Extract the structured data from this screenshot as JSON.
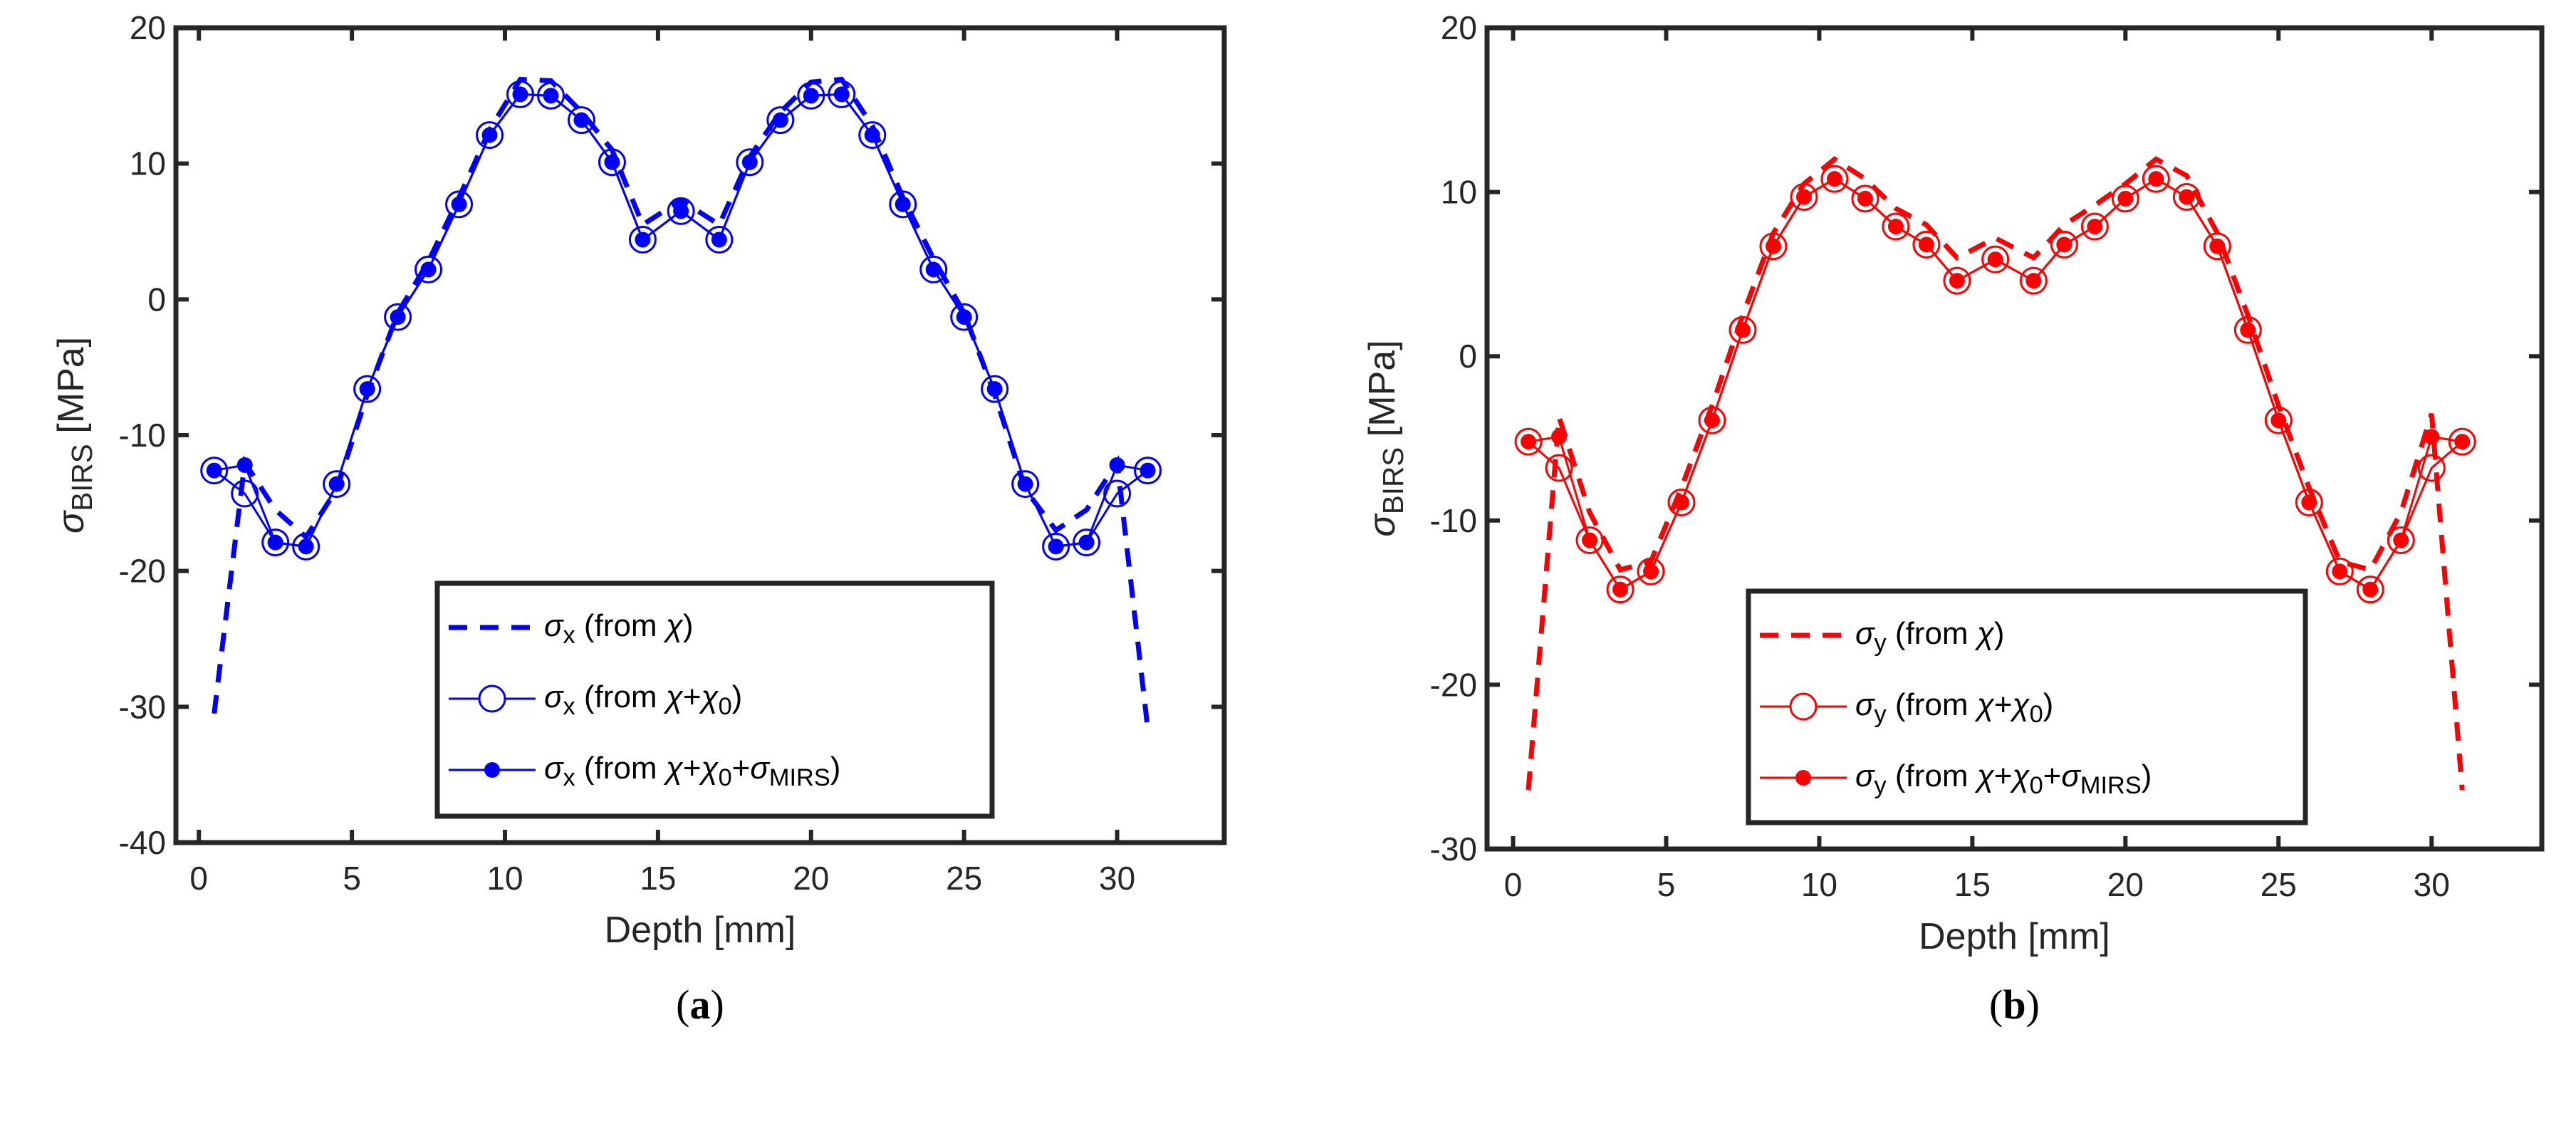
{
  "chart_data": [
    {
      "type": "line",
      "panel_label": [
        "(",
        "a",
        ")"
      ],
      "xlabel": "Depth [mm]",
      "ylabel": [
        {
          "t": "σ",
          "i": true
        },
        {
          "t": "BIRS",
          "sub": true
        },
        {
          "t": " [MPa]"
        }
      ],
      "xlim": [
        -0.75,
        33.5
      ],
      "ylim": [
        -40,
        20
      ],
      "xticks": [
        0,
        5,
        10,
        15,
        20,
        25,
        30
      ],
      "yticks": [
        -40,
        -30,
        -20,
        -10,
        0,
        10,
        20
      ],
      "color": "#0000ff",
      "legend_position": "bottom-center",
      "x": [
        0.5,
        1.5,
        2.5,
        3.5,
        4.5,
        5.5,
        6.5,
        7.5,
        8.5,
        9.5,
        10.5,
        11.5,
        12.5,
        13.5,
        14.5,
        15.75,
        17,
        18,
        19,
        20,
        21,
        22,
        23,
        24,
        25,
        26,
        27,
        28,
        29,
        30,
        31
      ],
      "series": [
        {
          "name": "σx (from χ)",
          "style": "dashed",
          "legend": [
            {
              "t": "σ",
              "i": true
            },
            {
              "t": "x",
              "sub": true
            },
            {
              "t": " (from "
            },
            {
              "t": "χ",
              "i": true
            },
            {
              "t": ")"
            }
          ],
          "values": [
            -30.5,
            -12,
            -15.5,
            -17.5,
            -14,
            -7,
            -1,
            2.8,
            7.5,
            12.5,
            16.2,
            16.1,
            13.8,
            11,
            5.5,
            7.3,
            5.5,
            10.5,
            13.8,
            16,
            16.2,
            12.8,
            7.5,
            3,
            -1,
            -7,
            -14,
            -17,
            -15.5,
            -12,
            -31.6
          ]
        },
        {
          "name": "σx (from χ+χ0)",
          "style": "open-circle",
          "legend": [
            {
              "t": "σ",
              "i": true
            },
            {
              "t": "x",
              "sub": true
            },
            {
              "t": " (from "
            },
            {
              "t": "χ",
              "i": true
            },
            {
              "t": "+"
            },
            {
              "t": "χ",
              "i": true
            },
            {
              "t": "0",
              "sub": true
            },
            {
              "t": ")"
            }
          ],
          "values": [
            -12.6,
            -14.3,
            -17.9,
            -18.2,
            -13.6,
            -6.6,
            -1.3,
            2.2,
            7.0,
            12.1,
            15.1,
            15.0,
            13.2,
            10.1,
            4.4,
            6.5,
            4.4,
            10.1,
            13.2,
            15.0,
            15.1,
            12.1,
            7.0,
            2.2,
            -1.3,
            -6.6,
            -13.6,
            -18.2,
            -17.9,
            -14.3,
            -12.6
          ]
        },
        {
          "name": "σx (from χ+χ0+σMIRS)",
          "style": "filled-dot",
          "legend": [
            {
              "t": "σ",
              "i": true
            },
            {
              "t": "x",
              "sub": true
            },
            {
              "t": " (from "
            },
            {
              "t": "χ",
              "i": true
            },
            {
              "t": "+"
            },
            {
              "t": "χ",
              "i": true
            },
            {
              "t": "0",
              "sub": true
            },
            {
              "t": "+"
            },
            {
              "t": "σ",
              "i": true
            },
            {
              "t": "MIRS",
              "sub": true
            },
            {
              "t": ")"
            }
          ],
          "values": [
            -12.6,
            -12.2,
            -17.9,
            -18.2,
            -13.6,
            -6.6,
            -1.3,
            2.2,
            7.0,
            12.1,
            15.1,
            15.0,
            13.2,
            10.1,
            4.4,
            6.5,
            4.4,
            10.1,
            13.2,
            15.0,
            15.1,
            12.1,
            7.0,
            2.2,
            -1.3,
            -6.6,
            -13.6,
            -18.2,
            -17.9,
            -12.2,
            -12.6
          ]
        }
      ]
    },
    {
      "type": "line",
      "panel_label": [
        "(",
        "b",
        ")"
      ],
      "xlabel": "Depth [mm]",
      "ylabel": [
        {
          "t": "σ",
          "i": true
        },
        {
          "t": "BIRS",
          "sub": true
        },
        {
          "t": " [MPa]"
        }
      ],
      "xlim": [
        -0.85,
        33.6
      ],
      "ylim": [
        -30,
        20
      ],
      "xticks": [
        0,
        5,
        10,
        15,
        20,
        25,
        30
      ],
      "yticks": [
        -30,
        -20,
        -10,
        0,
        10,
        20
      ],
      "color": "#ff0000",
      "legend_position": "bottom-center",
      "x": [
        0.5,
        1.5,
        2.5,
        3.5,
        4.5,
        5.5,
        6.5,
        7.5,
        8.5,
        9.5,
        10.5,
        11.5,
        12.5,
        13.5,
        14.5,
        15.75,
        17,
        18,
        19,
        20,
        21,
        22,
        23,
        24,
        25,
        26,
        27,
        28,
        29,
        30,
        31
      ],
      "series": [
        {
          "name": "σy (from χ)",
          "style": "dashed",
          "legend": [
            {
              "t": "σ",
              "i": true
            },
            {
              "t": "y",
              "sub": true
            },
            {
              "t": " (from "
            },
            {
              "t": "χ",
              "i": true
            },
            {
              "t": ")"
            }
          ],
          "values": [
            -26.4,
            -3.7,
            -9.5,
            -13,
            -12.5,
            -8,
            -3,
            2.5,
            7.5,
            10.5,
            12,
            10.8,
            9,
            8,
            6,
            7.2,
            6,
            8,
            9.2,
            10.5,
            12,
            11,
            7.5,
            2.5,
            -3,
            -8,
            -12.5,
            -13,
            -9.5,
            -3.5,
            -26.4
          ]
        },
        {
          "name": "σy (from χ+χ0)",
          "style": "open-circle",
          "legend": [
            {
              "t": "σ",
              "i": true
            },
            {
              "t": "y",
              "sub": true
            },
            {
              "t": " (from "
            },
            {
              "t": "χ",
              "i": true
            },
            {
              "t": "+"
            },
            {
              "t": "χ",
              "i": true
            },
            {
              "t": "0",
              "sub": true
            },
            {
              "t": ")"
            }
          ],
          "values": [
            -5.2,
            -6.8,
            -11.2,
            -14.2,
            -13.1,
            -8.9,
            -3.9,
            1.6,
            6.7,
            9.7,
            10.8,
            9.6,
            7.9,
            6.8,
            4.6,
            5.9,
            4.6,
            6.8,
            7.9,
            9.6,
            10.8,
            9.7,
            6.7,
            1.6,
            -3.9,
            -8.9,
            -13.1,
            -14.2,
            -11.2,
            -6.8,
            -5.2
          ]
        },
        {
          "name": "σy (from χ+χ0+σMIRS)",
          "style": "filled-dot",
          "legend": [
            {
              "t": "σ",
              "i": true
            },
            {
              "t": "y",
              "sub": true
            },
            {
              "t": " (from "
            },
            {
              "t": "χ",
              "i": true
            },
            {
              "t": "+"
            },
            {
              "t": "χ",
              "i": true
            },
            {
              "t": "0",
              "sub": true
            },
            {
              "t": "+"
            },
            {
              "t": "σ",
              "i": true
            },
            {
              "t": "MIRS",
              "sub": true
            },
            {
              "t": ")"
            }
          ],
          "values": [
            -5.2,
            -4.9,
            -11.2,
            -14.2,
            -13.1,
            -8.9,
            -3.9,
            1.6,
            6.7,
            9.7,
            10.8,
            9.6,
            7.9,
            6.8,
            4.6,
            5.9,
            4.6,
            6.8,
            7.9,
            9.6,
            10.8,
            9.7,
            6.7,
            1.6,
            -3.9,
            -8.9,
            -13.1,
            -14.2,
            -11.2,
            -4.9,
            -5.2
          ]
        }
      ]
    }
  ]
}
